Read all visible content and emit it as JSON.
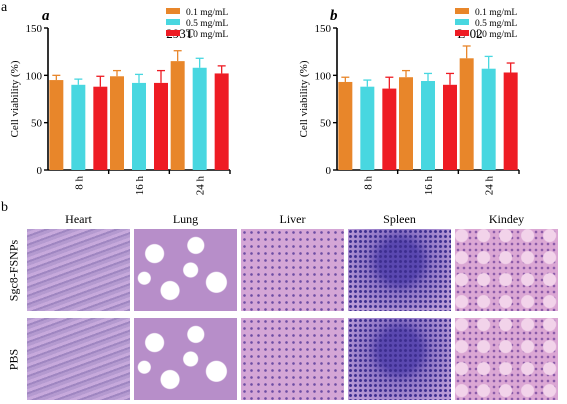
{
  "figure": {
    "panel_a_label": "a",
    "panel_b_label": "b"
  },
  "chart_data": [
    {
      "type": "bar",
      "panel": "a",
      "title": "293T",
      "ylabel": "Cell viability (%)",
      "xlabel": "",
      "categories": [
        "8 h",
        "16 h",
        "24 h"
      ],
      "ylim": [
        0,
        150
      ],
      "yticks": [
        0,
        50,
        100,
        150
      ],
      "legend_position": "top-right",
      "series": [
        {
          "name": "0.1 mg/mL",
          "color": "#e8862a",
          "values": [
            95,
            99,
            115
          ],
          "errors": [
            5,
            6,
            11
          ]
        },
        {
          "name": "0.5 mg/mL",
          "color": "#48d7e0",
          "values": [
            90,
            92,
            108
          ],
          "errors": [
            6,
            9,
            10
          ]
        },
        {
          "name": "1.0 mg/mL",
          "color": "#ee1c24",
          "values": [
            88,
            92,
            102
          ],
          "errors": [
            11,
            13,
            8
          ]
        }
      ]
    },
    {
      "type": "bar",
      "panel": "b",
      "title": "L-02",
      "ylabel": "Cell viability (%)",
      "xlabel": "",
      "categories": [
        "8 h",
        "16 h",
        "24 h"
      ],
      "ylim": [
        0,
        150
      ],
      "yticks": [
        0,
        50,
        100,
        150
      ],
      "legend_position": "top-right",
      "series": [
        {
          "name": "0.1 mg/mL",
          "color": "#e8862a",
          "values": [
            93,
            98,
            118
          ],
          "errors": [
            5,
            7,
            13
          ]
        },
        {
          "name": "0.5 mg/mL",
          "color": "#48d7e0",
          "values": [
            88,
            94,
            107
          ],
          "errors": [
            7,
            8,
            13
          ]
        },
        {
          "name": "1.0 mg/mL",
          "color": "#ee1c24",
          "values": [
            86,
            90,
            103
          ],
          "errors": [
            12,
            12,
            10
          ]
        }
      ]
    }
  ],
  "micrographs": {
    "columns": [
      "Heart",
      "Lung",
      "Liver",
      "Spleen",
      "Kindey"
    ],
    "rows": [
      "Sgc8-FSNPs",
      "PBS"
    ]
  }
}
